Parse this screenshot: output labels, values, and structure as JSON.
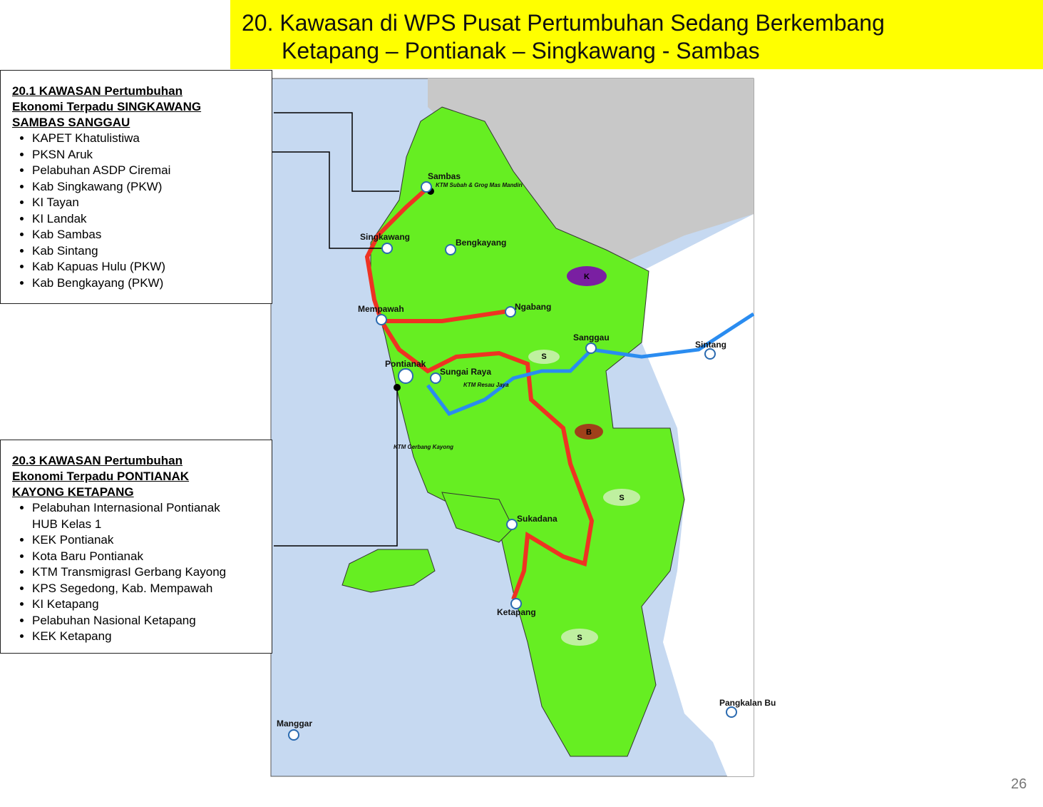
{
  "title": {
    "number": "20.",
    "line1": "Kawasan di WPS Pusat Pertumbuhan Sedang Berkembang",
    "line2": "Ketapang – Pontianak – Singkawang - Sambas"
  },
  "boxes": [
    {
      "heading": [
        "20.1  KAWASAN Pertumbuhan",
        "Ekonomi Terpadu SINGKAWANG",
        "SAMBAS SANGGAU"
      ],
      "items": [
        "KAPET Khatulistiwa",
        "PKSN Aruk",
        "Pelabuhan ASDP Ciremai",
        "Kab Singkawang (PKW)",
        "KI Tayan",
        "KI Landak",
        "Kab Sambas",
        "Kab Sintang",
        "Kab Kapuas Hulu (PKW)",
        "Kab Bengkayang (PKW)"
      ]
    },
    {
      "heading": [
        "20.3  KAWASAN Pertumbuhan",
        "Ekonomi Terpadu PONTIANAK",
        "KAYONG KETAPANG"
      ],
      "items": [
        "Pelabuhan Internasional Pontianak HUB Kelas 1",
        "KEK Pontianak",
        "Kota Baru Pontianak",
        "KTM TransmigrasI Gerbang Kayong",
        "KPS Segedong, Kab. Mempawah",
        "KI Ketapang",
        "Pelabuhan Nasional Ketapang",
        "KEK Ketapang"
      ]
    }
  ],
  "map": {
    "places": [
      "Sambas",
      "KTM Subah & Grog Mas Mandiri",
      "Singkawang",
      "Bengkayang",
      "Mempawah",
      "Ngabang",
      "Sanggau",
      "Sintang",
      "Pontianak",
      "Sungai Raya",
      "KTM Resau Jaya",
      "KTM Gerbang Kayong",
      "Sukadana",
      "Ketapang",
      "Manggar",
      "Pangkalan Bu"
    ],
    "zones": [
      "K",
      "S",
      "B",
      "S",
      "S"
    ]
  },
  "page_number": "26"
}
